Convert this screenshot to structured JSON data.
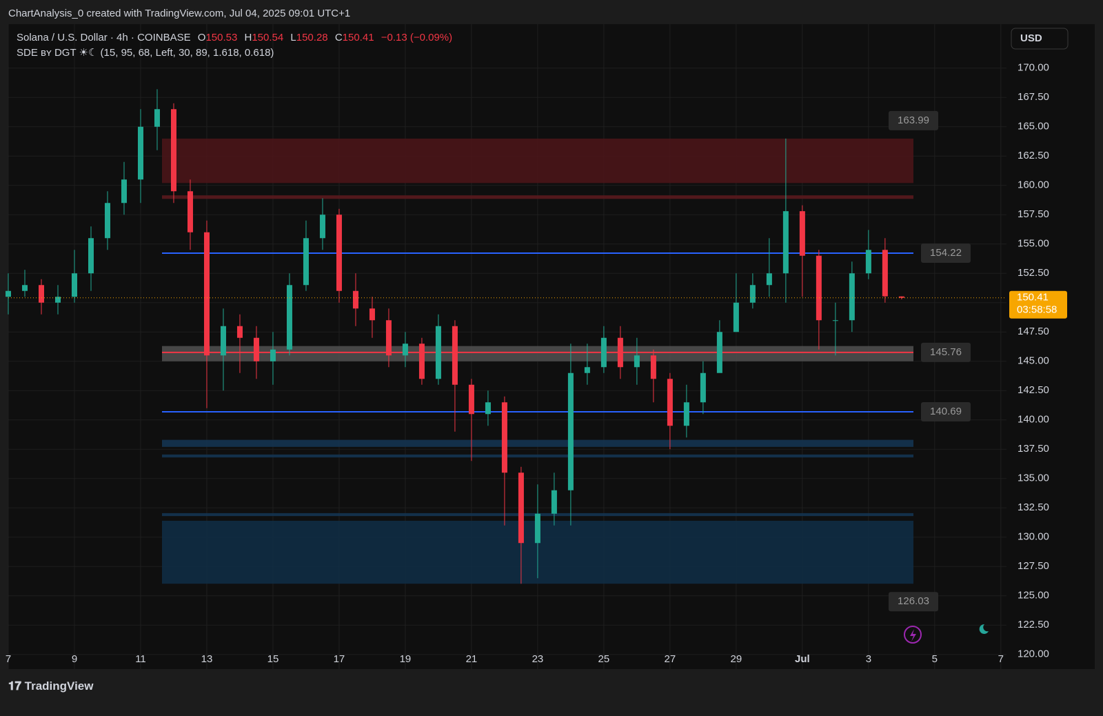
{
  "header": "ChartAnalysis_0 created with TradingView.com, Jul 04, 2025 09:01 UTC+1",
  "footer": "TradingView",
  "chart_data": {
    "type": "candlestick",
    "title": "Solana / U.S. Dollar · 4h · COINBASE",
    "ohlc_labels": [
      "O",
      "H",
      "L",
      "C"
    ],
    "change": "−0.13 (−0.09%)",
    "indicator": "SDE ʙʏ DGT ☀☾ (15, 95, 68, Left, 30, 89, 1.618, 0.618)",
    "currency": "USD",
    "countdown": "03:58:58",
    "up_color": "#22ab94",
    "down_color": "#f23645",
    "x": [
      7,
      7.5,
      8,
      8.5,
      9,
      9.5,
      10,
      10.5,
      11,
      11.5,
      12,
      12.5,
      13,
      13.5,
      14,
      14.5,
      15,
      15.5,
      16,
      16.5,
      17,
      17.5,
      18,
      18.5,
      19,
      19.5,
      20,
      20.5,
      21,
      21.5,
      22,
      22.5,
      23,
      23.5,
      24,
      24.5,
      25,
      25.5,
      26,
      26.5,
      27,
      27.5,
      28,
      28.5,
      29,
      29.5,
      30,
      30.5,
      31,
      31.5,
      32,
      32.5,
      33,
      33.5,
      34
    ],
    "open": [
      150.5,
      151,
      151.5,
      150,
      150.5,
      152.5,
      155.5,
      158.5,
      160.5,
      165,
      166.5,
      159.5,
      156,
      145.5,
      148,
      147,
      145,
      146,
      151.5,
      155.5,
      157.5,
      151,
      149.5,
      148.5,
      145.5,
      146.5,
      143.5,
      148,
      143,
      140.5,
      141.5,
      135.5,
      129.5,
      132,
      134,
      144,
      144.5,
      147,
      144.5,
      145.5,
      143.5,
      139.5,
      141.5,
      144,
      147.5,
      150,
      151.5,
      152.5,
      157.8,
      154,
      148.5,
      148.5,
      152.5,
      154.5,
      150.53
    ],
    "high": [
      152.5,
      152.8,
      152,
      151.5,
      154.5,
      156.5,
      159.5,
      162,
      166.5,
      168.2,
      167,
      160.5,
      157,
      149.5,
      149,
      148,
      147.5,
      152.5,
      157,
      158.9,
      158,
      152.5,
      150.5,
      149.5,
      147.5,
      147,
      149,
      148.5,
      143.5,
      142.5,
      142,
      136,
      134.5,
      135.5,
      146.5,
      146.5,
      148,
      148,
      147,
      146,
      144,
      143,
      145,
      148.5,
      152.5,
      152.5,
      155.5,
      163.99,
      158.3,
      154.5,
      150,
      153.5,
      156.2,
      155.5,
      150.54
    ],
    "low": [
      149,
      150.5,
      149,
      149,
      150,
      151,
      154.5,
      157.5,
      158.5,
      163,
      158.5,
      154.5,
      141,
      142.5,
      144,
      143.5,
      143,
      145.5,
      151,
      154.5,
      150,
      148,
      147,
      144.5,
      144.5,
      143,
      143,
      139,
      136.5,
      139.5,
      131,
      126.03,
      126.5,
      131,
      131,
      143,
      144,
      143.5,
      143,
      141.5,
      137.5,
      138.5,
      140.5,
      144.5,
      147.5,
      149.5,
      150.5,
      150,
      150.5,
      146,
      145.5,
      147.5,
      152,
      150,
      150.28
    ],
    "close": [
      151,
      151.5,
      150,
      150.5,
      152.5,
      155.5,
      158.5,
      160.5,
      165,
      166.5,
      159.5,
      156,
      145.5,
      148,
      147,
      145,
      146,
      151.5,
      155.5,
      157.5,
      151,
      149.5,
      148.5,
      145.5,
      146.5,
      143.5,
      148,
      143,
      140.5,
      141.5,
      135.5,
      129.5,
      132,
      134,
      144,
      144.5,
      147,
      144.5,
      145.5,
      143.5,
      139.5,
      141.5,
      144,
      147.5,
      150,
      151.5,
      152.5,
      157.8,
      154,
      148.5,
      148.5,
      152.5,
      154.5,
      150.54,
      150.41
    ],
    "zones": [
      {
        "from": 160.2,
        "to": 163.99,
        "color": "#4a1518"
      },
      {
        "from": 158.85,
        "to": 159.15,
        "color": "#5a1a1e"
      },
      {
        "from": 145,
        "to": 146.3,
        "color": "#4e4e4e"
      },
      {
        "from": 137.7,
        "to": 138.3,
        "color": "#143451"
      },
      {
        "from": 136.8,
        "to": 137.05,
        "color": "#143451"
      },
      {
        "from": 131.8,
        "to": 132.05,
        "color": "#143451"
      },
      {
        "from": 126.03,
        "to": 131.4,
        "color": "#0f2c44"
      }
    ],
    "lines": [
      {
        "value": 154.22,
        "color": "#2962ff"
      },
      {
        "value": 145.76,
        "color": "#f23645"
      },
      {
        "value": 140.69,
        "color": "#2962ff"
      }
    ],
    "level_labels": [
      163.99,
      154.22,
      145.76,
      140.69,
      126.03
    ],
    "ylim": [
      118.75,
      173.75
    ],
    "yticks": [
      {
        "value": 120,
        "label": "120.00"
      },
      {
        "value": 122.5,
        "label": "122.50"
      },
      {
        "value": 125,
        "label": "125.00"
      },
      {
        "value": 127.5,
        "label": "127.50"
      },
      {
        "value": 130,
        "label": "130.00"
      },
      {
        "value": 132.5,
        "label": "132.50"
      },
      {
        "value": 135,
        "label": "135.00"
      },
      {
        "value": 137.5,
        "label": "137.50"
      },
      {
        "value": 140,
        "label": "140.00"
      },
      {
        "value": 142.5,
        "label": "142.50"
      },
      {
        "value": 145,
        "label": "145.00"
      },
      {
        "value": 147.5,
        "label": "147.50"
      },
      {
        "value": 150,
        "label": "150.00"
      },
      {
        "value": 152.5,
        "label": "152.50"
      },
      {
        "value": 155,
        "label": "155.00"
      },
      {
        "value": 157.5,
        "label": "157.50"
      },
      {
        "value": 160,
        "label": "160.00"
      },
      {
        "value": 162.5,
        "label": "162.50"
      },
      {
        "value": 165,
        "label": "165.00"
      },
      {
        "value": 167.5,
        "label": "167.50"
      },
      {
        "value": 170,
        "label": "170.00"
      }
    ],
    "xlim": [
      7,
      37.17
    ],
    "xticks": [
      7,
      9,
      11,
      13,
      15,
      17,
      19,
      21,
      23,
      25,
      27,
      29,
      {
        "value": 31,
        "label": "Jul"
      },
      {
        "value": 33,
        "label": "3"
      },
      {
        "value": 35,
        "label": "5"
      },
      {
        "value": 37,
        "label": "7"
      }
    ],
    "grid": true
  }
}
